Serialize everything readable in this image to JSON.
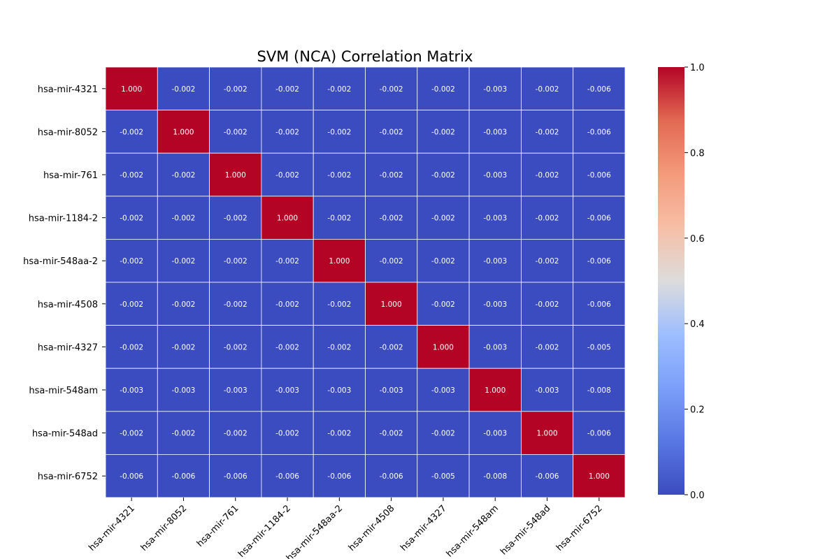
{
  "chart_data": {
    "type": "heatmap",
    "title": "SVM (NCA) Correlation Matrix",
    "labels": [
      "hsa-mir-4321",
      "hsa-mir-8052",
      "hsa-mir-761",
      "hsa-mir-1184-2",
      "hsa-mir-548aa-2",
      "hsa-mir-4508",
      "hsa-mir-4327",
      "hsa-mir-548am",
      "hsa-mir-548ad",
      "hsa-mir-6752"
    ],
    "matrix": [
      [
        1.0,
        -0.002,
        -0.002,
        -0.002,
        -0.002,
        -0.002,
        -0.002,
        -0.003,
        -0.002,
        -0.006
      ],
      [
        -0.002,
        1.0,
        -0.002,
        -0.002,
        -0.002,
        -0.002,
        -0.002,
        -0.003,
        -0.002,
        -0.006
      ],
      [
        -0.002,
        -0.002,
        1.0,
        -0.002,
        -0.002,
        -0.002,
        -0.002,
        -0.003,
        -0.002,
        -0.006
      ],
      [
        -0.002,
        -0.002,
        -0.002,
        1.0,
        -0.002,
        -0.002,
        -0.002,
        -0.003,
        -0.002,
        -0.006
      ],
      [
        -0.002,
        -0.002,
        -0.002,
        -0.002,
        1.0,
        -0.002,
        -0.002,
        -0.003,
        -0.002,
        -0.006
      ],
      [
        -0.002,
        -0.002,
        -0.002,
        -0.002,
        -0.002,
        1.0,
        -0.002,
        -0.003,
        -0.002,
        -0.006
      ],
      [
        -0.002,
        -0.002,
        -0.002,
        -0.002,
        -0.002,
        -0.002,
        1.0,
        -0.003,
        -0.002,
        -0.005
      ],
      [
        -0.003,
        -0.003,
        -0.003,
        -0.003,
        -0.003,
        -0.003,
        -0.003,
        1.0,
        -0.003,
        -0.008
      ],
      [
        -0.002,
        -0.002,
        -0.002,
        -0.002,
        -0.002,
        -0.002,
        -0.002,
        -0.003,
        1.0,
        -0.006
      ],
      [
        -0.006,
        -0.006,
        -0.006,
        -0.006,
        -0.006,
        -0.006,
        -0.005,
        -0.008,
        -0.006,
        1.0
      ]
    ],
    "value_format": "3 decimals",
    "colormap": "coolwarm",
    "colorbar": {
      "range": [
        0.0,
        1.0
      ],
      "ticks": [
        "0.0",
        "0.2",
        "0.4",
        "0.6",
        "0.8",
        "1.0"
      ]
    },
    "colors": {
      "low": "#3b4cc0",
      "high": "#b40426",
      "gridline": "#ffffff"
    }
  }
}
